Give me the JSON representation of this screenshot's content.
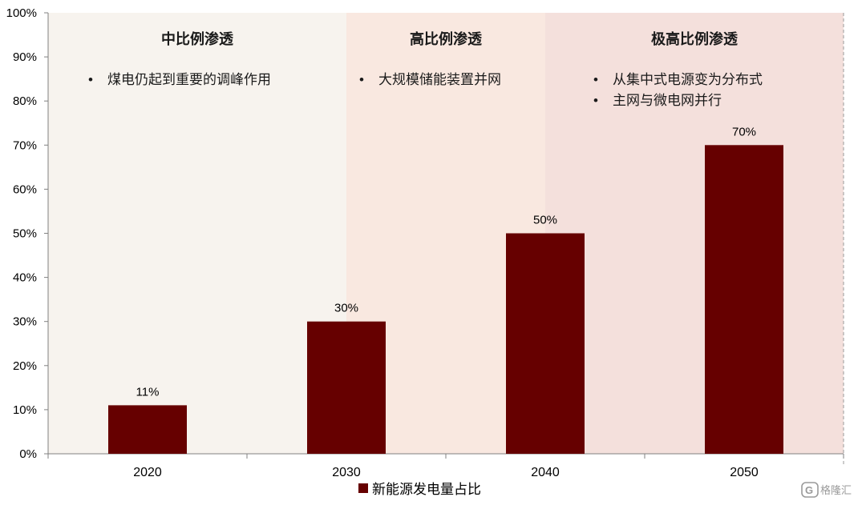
{
  "chart_data": {
    "type": "bar",
    "categories": [
      "2020",
      "2030",
      "2040",
      "2050"
    ],
    "series": [
      {
        "name": "新能源发电量占比",
        "values": [
          11,
          30,
          50,
          70
        ],
        "labels": [
          "11%",
          "30%",
          "50%",
          "70%"
        ],
        "color": "#660000"
      }
    ],
    "ylim": [
      0,
      100
    ],
    "yticks": [
      "0%",
      "10%",
      "20%",
      "30%",
      "40%",
      "50%",
      "60%",
      "70%",
      "80%",
      "90%",
      "100%"
    ],
    "grid": false,
    "legend_position": "bottom-center",
    "phases": [
      {
        "title": "中比例渗透",
        "notes": [
          "煤电仍起到重要的调峰作用"
        ],
        "span": [
          0,
          1.5
        ],
        "color": "#f7f3ee"
      },
      {
        "title": "高比例渗透",
        "notes": [
          "大规模储能装置并网"
        ],
        "span": [
          1.5,
          2.5
        ],
        "color": "#f9e8e0"
      },
      {
        "title": "极高比例渗透",
        "notes": [
          "从集中式电源变为分布式",
          "主网与微电网并行"
        ],
        "span": [
          2.5,
          4
        ],
        "color": "#f4e0dc"
      }
    ]
  },
  "watermark": {
    "text": "格隆汇",
    "icon": "g-logo-icon"
  }
}
